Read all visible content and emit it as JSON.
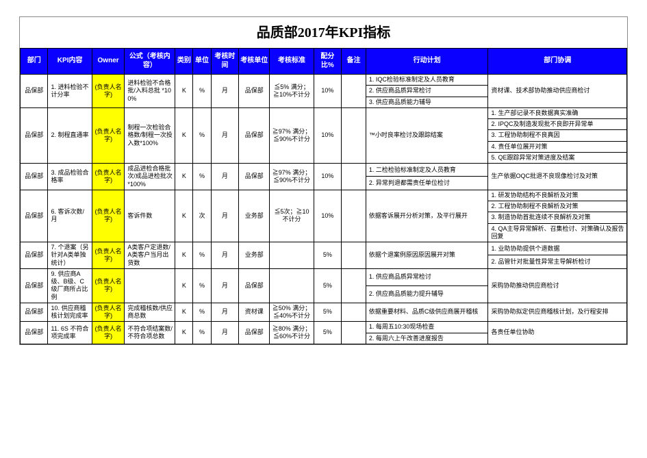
{
  "title": "品质部2017年KPI指标",
  "headers": {
    "dept": "部门",
    "kpi": "KPI内容",
    "owner": "Owner",
    "formula": "公式（考核内容）",
    "type": "类别",
    "unit": "单位",
    "period": "考核时间",
    "assessor": "考核单位",
    "standard": "考核标准",
    "weight": "配分比%",
    "remark": "备注",
    "action": "行动计划",
    "coord": "部门协调"
  },
  "common": {
    "dept": "品保部",
    "owner": "(负责人名字)",
    "type": "K",
    "unit_pct": "%",
    "unit_times": "次",
    "period": "月",
    "assessor_qa": "品保部",
    "assessor_mat": "资材课",
    "assessor_biz": "业务部"
  },
  "rows": {
    "r1": {
      "kpi": "1. 进料检验不计分率",
      "formula": "进料检验不合格批/入料总批 *100%",
      "standard": "≦5% 满分；≧10%不计分",
      "weight": "10%",
      "a1": "1. IQC检验标准制定及人员教育",
      "a2": "2. 供应商品质异常检讨",
      "a3": "3. 供应商品质能力辅导",
      "c1": "资材课、技术部协助推动供应商检讨"
    },
    "r2": {
      "kpi": "2. 制程直通率",
      "formula": "制程一次检验合格数/制程一次投入数*100%",
      "standard": "≧97% 满分；≦90%不计分",
      "weight": "10%",
      "action": "™小时良率检讨及跟踪结案",
      "c1": "1. 生产部记录不良数据真实准确",
      "c2": "2. IPQC及制造发现批不良即开异常单",
      "c3": "3. 工程协助制程不良真因",
      "c4": "4. 责任单位展开对策",
      "c5": "5. QE跟踪异常对策进度及结案"
    },
    "r3": {
      "kpi": "3. 成品检验合格率",
      "formula": "成品进检合格批次/成品进检批次*100%",
      "standard": "≧97% 满分；≦90%不计分",
      "weight": "10%",
      "a1": "1. 二检检验标准制定及人员教育",
      "a2": "2. 异常判退都需责任单位检讨",
      "c1": "生产依据OQC批退不良现像检讨及对策"
    },
    "r4": {
      "kpi": "6. 客诉次数/月",
      "formula": "客诉件数",
      "standard": "≦5次；≧10不计分",
      "weight": "10%",
      "action": "依据客诉展开分析对策，及平行展开",
      "c1": "1. 研发协助结构不良解析及对策",
      "c2": "2. 工程协助制程不良解析及对策",
      "c3": "3. 制造协助首批连续不良解析及对策",
      "c4": "4. QA主导异常解析、召集检讨、对策确认及报告回复"
    },
    "r5": {
      "kpi": "7. 个退案（另针对A类单独统计）",
      "formula": "A类客户定退数/A类客户当月出货数",
      "standard": "",
      "weight": "5%",
      "action": "依据个退案例原因原因展开对策",
      "c1": "1. 业助协助提供个退数据",
      "c2": "2. 品管针对批量性异常主导解析检讨"
    },
    "r6": {
      "kpi": "9. 供应商A级、B级、C级厂商所占比例",
      "formula": "",
      "standard": "",
      "weight": "5%",
      "a1": "1. 供应商品质异常检讨",
      "a2": "2. 供应商品质能力提升辅导",
      "c1": "采购协助推动供应商检讨"
    },
    "r7": {
      "kpi": "10. 供应商稽核计划完成率",
      "formula": "完成稽核数/供应商总数",
      "standard": "≧50% 满分；≦40%不计分",
      "weight": "5%",
      "action": "依据重要材料、品质C级供应商展开稽核",
      "c1": "采购协助拟定供应商稽核计划，及行程安排"
    },
    "r8": {
      "kpi": "11. 6S 不符合项完成率",
      "formula": "不符合项结案数/不符合项总数",
      "standard": "≧80% 满分；≦60%不计分",
      "weight": "5%",
      "a1": "1. 每周五10:30现场检查",
      "a2": "2. 每周六上午改善进度报告",
      "c1": "各责任单位协助"
    }
  }
}
